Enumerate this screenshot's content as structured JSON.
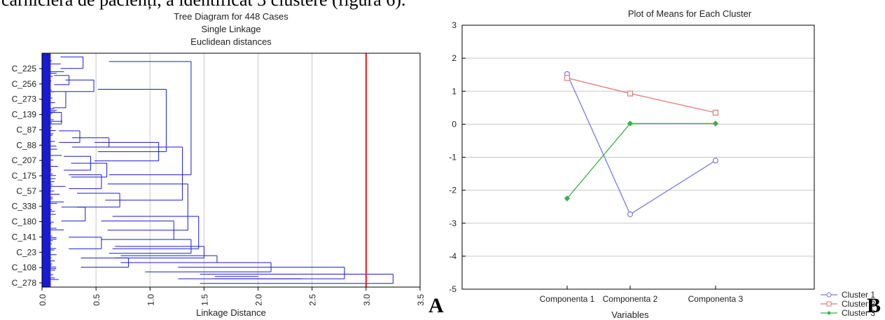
{
  "caption": "cărnicieră de pacienți, a identificat 3 clustere (figura 6).",
  "panel_letters": [
    "A",
    "B"
  ],
  "chart_data": [
    {
      "type": "dendrogram",
      "title": [
        "Tree Diagram for 448 Cases",
        "Single Linkage",
        "Euclidean distances"
      ],
      "xlabel": "Linkage Distance",
      "xlim": [
        0,
        3.5
      ],
      "xticks": [
        "0.0",
        "0.5",
        "1.0",
        "1.5",
        "2.0",
        "2.5",
        "3.0",
        "3.5"
      ],
      "case_labels": [
        "C_225",
        "C_256",
        "C_273",
        "C_139",
        "C_87",
        "C_88",
        "C_207",
        "C_175",
        "C_57",
        "C_338",
        "C_180",
        "C_141",
        "C_23",
        "C_108",
        "C_278"
      ],
      "cut_line": 3.0,
      "cut_color": "#e8191c",
      "tree_color": "#1a1ad2",
      "grid": true
    },
    {
      "type": "line",
      "title": "Plot of Means for Each Cluster",
      "xlabel": "Variables",
      "categories": [
        "Componenta 1",
        "Componenta 2",
        "Componenta 3"
      ],
      "ylim": [
        -5,
        3
      ],
      "yticks": [
        "3",
        "2",
        "1",
        "0",
        "-1",
        "-2",
        "-3",
        "-4",
        "-5"
      ],
      "series": [
        {
          "name": "Cluster  1",
          "values": [
            1.52,
            -2.73,
            -1.1
          ],
          "color": "#7a7ae0",
          "marker": "circle"
        },
        {
          "name": "Cluster  2",
          "values": [
            1.4,
            0.93,
            0.35
          ],
          "color": "#e07878",
          "marker": "square"
        },
        {
          "name": "Cluster  3",
          "values": [
            -2.25,
            0.02,
            0.02
          ],
          "color": "#3cb04a",
          "marker": "diamond"
        }
      ],
      "legend": "bottom-right",
      "grid": true
    }
  ]
}
